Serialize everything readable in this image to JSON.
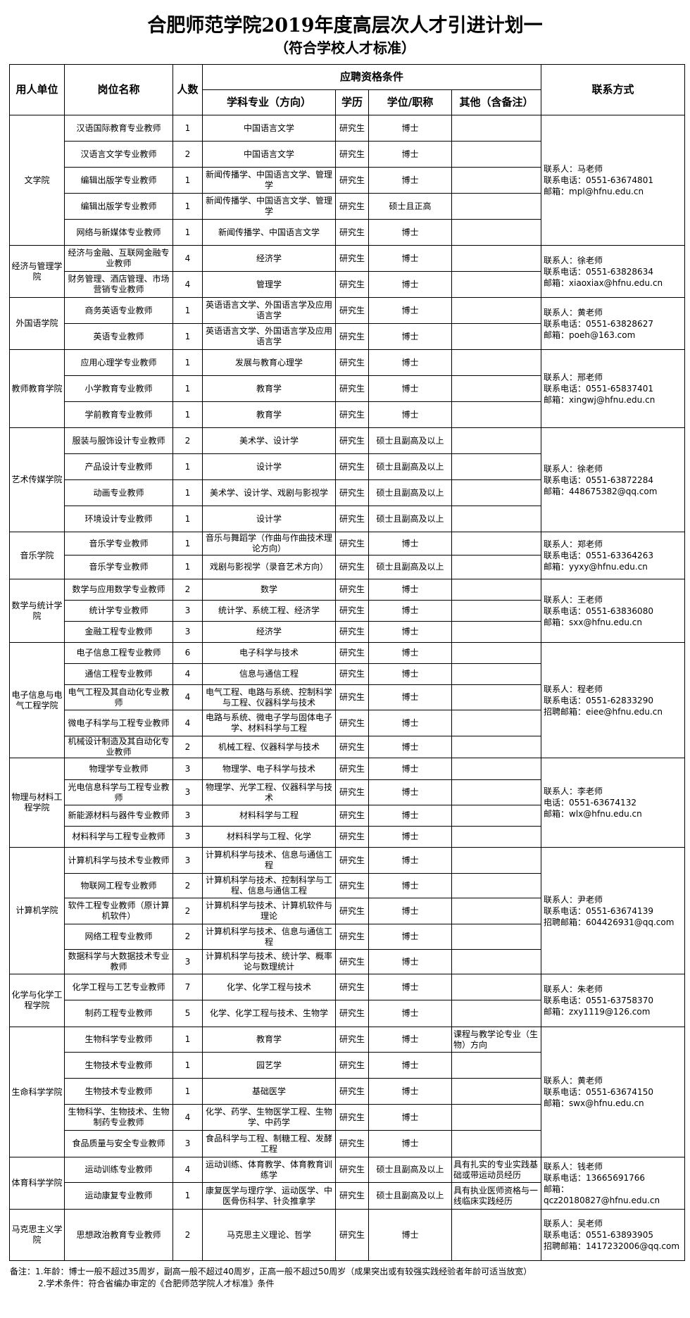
{
  "title": "合肥师范学院2019年度高层次人才引进计划一",
  "subtitle": "（符合学校人才标准）",
  "headers": {
    "unit": "用人单位",
    "position": "岗位名称",
    "count": "人数",
    "requirements": "应聘资格条件",
    "major": "学科专业（方向）",
    "education": "学历",
    "degree": "学位/职称",
    "other": "其他（含备注）",
    "contact": "联系方式"
  },
  "units": [
    {
      "name": "文学院",
      "contact": [
        "联系人：马老师",
        "联系电话：0551-63674801",
        "邮箱：mpl@hfnu.edu.cn"
      ],
      "rows": [
        {
          "position": "汉语国际教育专业教师",
          "count": "1",
          "major": "中国语言文学",
          "education": "研究生",
          "degree": "博士",
          "other": ""
        },
        {
          "position": "汉语言文学专业教师",
          "count": "2",
          "major": "中国语言文学",
          "education": "研究生",
          "degree": "博士",
          "other": ""
        },
        {
          "position": "编辑出版学专业教师",
          "count": "1",
          "major": "新闻传播学、中国语言文学、管理学",
          "education": "研究生",
          "degree": "博士",
          "other": ""
        },
        {
          "position": "编辑出版学专业教师",
          "count": "1",
          "major": "新闻传播学、中国语言文学、管理学",
          "education": "研究生",
          "degree": "硕士且正高",
          "other": ""
        },
        {
          "position": "网络与新媒体专业教师",
          "count": "1",
          "major": "新闻传播学、中国语言文学",
          "education": "研究生",
          "degree": "博士",
          "other": ""
        }
      ]
    },
    {
      "name": "经济与管理学院",
      "contact": [
        "联系人：徐老师",
        "联系电话：0551-63828634",
        "邮箱：xiaoxiax@hfnu.edu.cn"
      ],
      "rows": [
        {
          "position": "经济与金融、互联网金融专业教师",
          "count": "4",
          "major": "经济学",
          "education": "研究生",
          "degree": "博士",
          "other": ""
        },
        {
          "position": "财务管理、酒店管理、市场营销专业教师",
          "count": "4",
          "major": "管理学",
          "education": "研究生",
          "degree": "博士",
          "other": ""
        }
      ]
    },
    {
      "name": "外国语学院",
      "contact": [
        "联系人：黄老师",
        "联系电话：0551-63828627",
        "邮箱：poeh@163.com"
      ],
      "rows": [
        {
          "position": "商务英语专业教师",
          "count": "1",
          "major": "英语语言文学、外国语言学及应用语言学",
          "education": "研究生",
          "degree": "博士",
          "other": ""
        },
        {
          "position": "英语专业教师",
          "count": "1",
          "major": "英语语言文学、外国语言学及应用语言学",
          "education": "研究生",
          "degree": "博士",
          "other": ""
        }
      ]
    },
    {
      "name": "教师教育学院",
      "contact": [
        "联系人：邢老师",
        "联系电话：0551-65837401",
        "邮箱：xingwj@hfnu.edu.cn"
      ],
      "rows": [
        {
          "position": "应用心理学专业教师",
          "count": "1",
          "major": "发展与教育心理学",
          "education": "研究生",
          "degree": "博士",
          "other": ""
        },
        {
          "position": "小学教育专业教师",
          "count": "1",
          "major": "教育学",
          "education": "研究生",
          "degree": "博士",
          "other": ""
        },
        {
          "position": "学前教育专业教师",
          "count": "1",
          "major": "教育学",
          "education": "研究生",
          "degree": "博士",
          "other": ""
        }
      ]
    },
    {
      "name": "艺术传媒学院",
      "contact": [
        "联系人：徐老师",
        "联系电话：0551-63872284",
        "邮箱：448675382@qq.com"
      ],
      "rows": [
        {
          "position": "服装与服饰设计专业教师",
          "count": "2",
          "major": "美术学、设计学",
          "education": "研究生",
          "degree": "硕士且副高及以上",
          "other": ""
        },
        {
          "position": "产品设计专业教师",
          "count": "1",
          "major": "设计学",
          "education": "研究生",
          "degree": "硕士且副高及以上",
          "other": ""
        },
        {
          "position": "动画专业教师",
          "count": "1",
          "major": "美术学、设计学、戏剧与影视学",
          "education": "研究生",
          "degree": "硕士且副高及以上",
          "other": ""
        },
        {
          "position": "环境设计专业教师",
          "count": "1",
          "major": "设计学",
          "education": "研究生",
          "degree": "硕士且副高及以上",
          "other": ""
        }
      ]
    },
    {
      "name": "音乐学院",
      "contact": [
        "联系人：郑老师",
        "联系电话：0551-63364263",
        "邮箱：yyxy@hfnu.edu.cn"
      ],
      "rows": [
        {
          "position": "音乐学专业教师",
          "count": "1",
          "major": "音乐与舞蹈学（作曲与作曲技术理论方向）",
          "education": "研究生",
          "degree": "博士",
          "other": ""
        },
        {
          "position": "音乐学专业教师",
          "count": "1",
          "major": "戏剧与影视学（录音艺术方向）",
          "education": "研究生",
          "degree": "硕士且副高及以上",
          "other": ""
        }
      ]
    },
    {
      "name": "数学与统计学院",
      "contact": [
        "联系人：王老师",
        "联系电话：0551-63836080",
        "邮箱：sxx@hfnu.edu.cn"
      ],
      "rows": [
        {
          "position": "数学与应用数学专业教师",
          "count": "2",
          "major": "数学",
          "education": "研究生",
          "degree": "博士",
          "other": ""
        },
        {
          "position": "统计学专业教师",
          "count": "3",
          "major": "统计学、系统工程、经济学",
          "education": "研究生",
          "degree": "博士",
          "other": ""
        },
        {
          "position": "金融工程专业教师",
          "count": "3",
          "major": "经济学",
          "education": "研究生",
          "degree": "博士",
          "other": ""
        }
      ]
    },
    {
      "name": "电子信息与电气工程学院",
      "contact": [
        "联系人：程老师",
        "联系电话：0551-62833290",
        "招聘邮箱：eiee@hfnu.edu.cn"
      ],
      "rows": [
        {
          "position": "电子信息工程专业教师",
          "count": "6",
          "major": "电子科学与技术",
          "education": "研究生",
          "degree": "博士",
          "other": ""
        },
        {
          "position": "通信工程专业教师",
          "count": "4",
          "major": "信息与通信工程",
          "education": "研究生",
          "degree": "博士",
          "other": ""
        },
        {
          "position": "电气工程及其自动化专业教师",
          "count": "4",
          "major": "电气工程、电路与系统、控制科学与工程、仪器科学与技术",
          "education": "研究生",
          "degree": "博士",
          "other": ""
        },
        {
          "position": "微电子科学与工程专业教师",
          "count": "4",
          "major": "电路与系统、微电子学与固体电子学、材料科学与工程",
          "education": "研究生",
          "degree": "博士",
          "other": ""
        },
        {
          "position": "机械设计制造及其自动化专业教师",
          "count": "2",
          "major": "机械工程、仪器科学与技术",
          "education": "研究生",
          "degree": "博士",
          "other": ""
        }
      ]
    },
    {
      "name": "物理与材料工程学院",
      "contact": [
        "联系人：李老师",
        "电话：0551-63674132",
        "邮箱：wlx@hfnu.edu.cn"
      ],
      "rows": [
        {
          "position": "物理学专业教师",
          "count": "3",
          "major": "物理学、电子科学与技术",
          "education": "研究生",
          "degree": "博士",
          "other": ""
        },
        {
          "position": "光电信息科学与工程专业教师",
          "count": "3",
          "major": "物理学、光学工程、仪器科学与技术",
          "education": "研究生",
          "degree": "博士",
          "other": ""
        },
        {
          "position": "新能源材料与器件专业教师",
          "count": "3",
          "major": "材料科学与工程",
          "education": "研究生",
          "degree": "博士",
          "other": ""
        },
        {
          "position": "材料科学与工程专业教师",
          "count": "3",
          "major": "材料科学与工程、化学",
          "education": "研究生",
          "degree": "博士",
          "other": ""
        }
      ]
    },
    {
      "name": "计算机学院",
      "contact": [
        "联系人：尹老师",
        "联系电话：0551-63674139",
        "招聘邮箱：604426931@qq.com"
      ],
      "rows": [
        {
          "position": "计算机科学与技术专业教师",
          "count": "3",
          "major": "计算机科学与技术、信息与通信工程",
          "education": "研究生",
          "degree": "博士",
          "other": ""
        },
        {
          "position": "物联网工程专业教师",
          "count": "2",
          "major": "计算机科学与技术、控制科学与工程、信息与通信工程",
          "education": "研究生",
          "degree": "博士",
          "other": ""
        },
        {
          "position": "软件工程专业教师（原计算机软件）",
          "count": "2",
          "major": "计算机科学与技术、计算机软件与理论",
          "education": "研究生",
          "degree": "博士",
          "other": ""
        },
        {
          "position": "网络工程专业教师",
          "count": "2",
          "major": "计算机科学与技术、信息与通信工程",
          "education": "研究生",
          "degree": "博士",
          "other": ""
        },
        {
          "position": "数据科学与大数据技术专业教师",
          "count": "3",
          "major": "计算机科学与技术、统计学、概率论与数理统计",
          "education": "研究生",
          "degree": "博士",
          "other": ""
        }
      ]
    },
    {
      "name": "化学与化学工程学院",
      "contact": [
        "联系人：朱老师",
        "联系电话：0551-63758370",
        "邮箱：zxy1119@126.com"
      ],
      "rows": [
        {
          "position": "化学工程与工艺专业教师",
          "count": "7",
          "major": "化学、化学工程与技术",
          "education": "研究生",
          "degree": "博士",
          "other": ""
        },
        {
          "position": "制药工程专业教师",
          "count": "5",
          "major": "化学、化学工程与技术、生物学",
          "education": "研究生",
          "degree": "博士",
          "other": ""
        }
      ]
    },
    {
      "name": "生命科学学院",
      "contact": [
        "联系人：黄老师",
        "联系电话：0551-63674150",
        "邮箱：swx@hfnu.edu.cn"
      ],
      "rows": [
        {
          "position": "生物科学专业教师",
          "count": "1",
          "major": "教育学",
          "education": "研究生",
          "degree": "博士",
          "other": "课程与教学论专业（生物）方向"
        },
        {
          "position": "生物技术专业教师",
          "count": "1",
          "major": "园艺学",
          "education": "研究生",
          "degree": "博士",
          "other": ""
        },
        {
          "position": "生物技术专业教师",
          "count": "1",
          "major": "基础医学",
          "education": "研究生",
          "degree": "博士",
          "other": ""
        },
        {
          "position": "生物科学、生物技术、生物制药专业教师",
          "count": "4",
          "major": "化学、药学、生物医学工程、生物学、中药学",
          "education": "研究生",
          "degree": "博士",
          "other": ""
        },
        {
          "position": "食品质量与安全专业教师",
          "count": "3",
          "major": "食品科学与工程、制糖工程、发酵工程",
          "education": "研究生",
          "degree": "博士",
          "other": ""
        }
      ]
    },
    {
      "name": "体育科学学院",
      "contact": [
        "联系人：钱老师",
        "联系电话：13665691766",
        "邮箱：",
        "qcz20180827@hfnu.edu.cn"
      ],
      "rows": [
        {
          "position": "运动训练专业教师",
          "count": "4",
          "major": "运动训练、体育教学、体育教育训练学",
          "education": "研究生",
          "degree": "硕士且副高及以上",
          "other": "具有扎实的专业实践基础或带运动员经历"
        },
        {
          "position": "运动康复专业教师",
          "count": "1",
          "major": "康复医学与理疗学、运动医学、中医骨伤科学、针灸推拿学",
          "education": "研究生",
          "degree": "硕士且副高及以上",
          "other": "具有执业医师资格与一线临床实践经历"
        }
      ]
    },
    {
      "name": "马克思主义学院",
      "contact": [
        "联系人：吴老师",
        "联系电话：0551-63893905",
        "招聘邮箱：1417232006@qq.com"
      ],
      "rows": [
        {
          "position": "思想政治教育专业教师",
          "count": "2",
          "major": "马克思主义理论、哲学",
          "education": "研究生",
          "degree": "博士",
          "other": ""
        }
      ]
    }
  ],
  "notes": [
    "备注：1.年龄：博士一般不超过35周岁，副高一般不超过40周岁，正高一般不超过50周岁（成果突出或有较强实践经验者年龄可适当放宽）",
    "2.学术条件：符合省编办审定的《合肥师范学院人才标准》条件"
  ]
}
